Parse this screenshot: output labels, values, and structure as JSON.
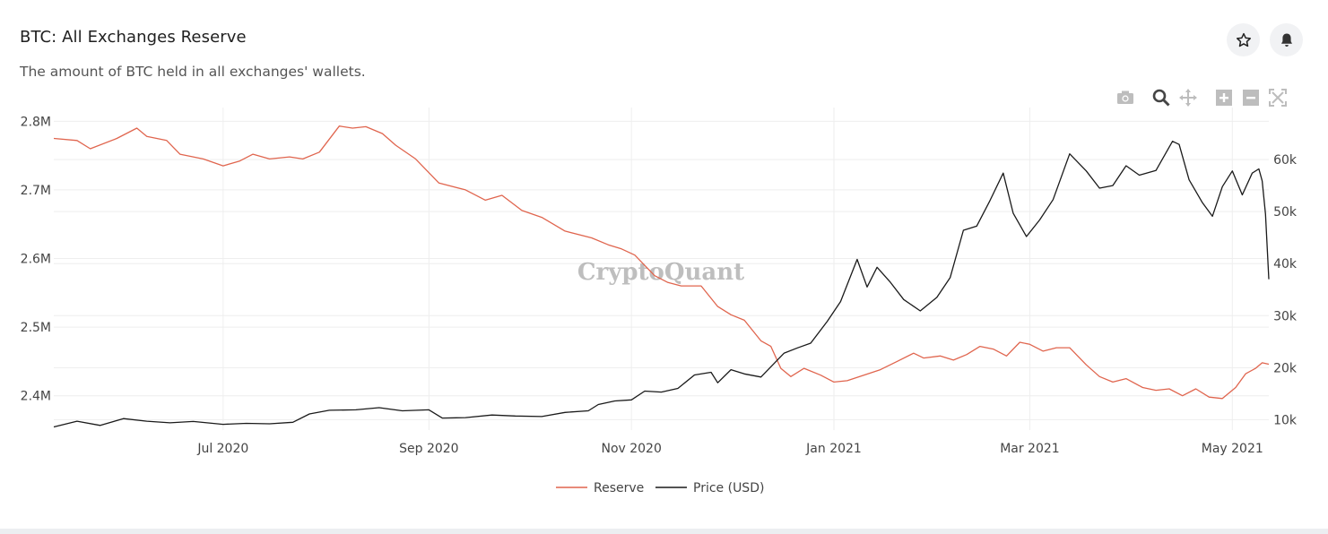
{
  "header": {
    "title": "BTC: All Exchanges Reserve",
    "subtitle": "The amount of BTC held in all exchanges' wallets."
  },
  "actions": {
    "favorite_icon": "star-icon",
    "alert_icon": "bell-icon"
  },
  "modebar": [
    "camera-icon",
    "zoom-icon",
    "pan-icon",
    "zoom-in-icon",
    "zoom-out-icon",
    "autoscale-icon"
  ],
  "watermark": "CryptoQuant",
  "colors": {
    "reserve": "#e0654e",
    "price": "#1a1a1a",
    "grid": "#eeeeee"
  },
  "chart_data": {
    "type": "line",
    "title": "BTC: All Exchanges Reserve",
    "x_range": [
      "2020-05-11",
      "2021-05-12"
    ],
    "x_ticks": [
      {
        "date": "2020-07-01",
        "label": "Jul 2020"
      },
      {
        "date": "2020-09-01",
        "label": "Sep 2020"
      },
      {
        "date": "2020-11-01",
        "label": "Nov 2020"
      },
      {
        "date": "2021-01-01",
        "label": "Jan 2021"
      },
      {
        "date": "2021-03-01",
        "label": "Mar 2021"
      },
      {
        "date": "2021-05-01",
        "label": "May 2021"
      }
    ],
    "y_left": {
      "range": [
        2.35,
        2.82
      ],
      "unit": "M",
      "ticks": [
        {
          "v": 2.4,
          "label": "2.4M"
        },
        {
          "v": 2.5,
          "label": "2.5M"
        },
        {
          "v": 2.6,
          "label": "2.6M"
        },
        {
          "v": 2.7,
          "label": "2.7M"
        },
        {
          "v": 2.8,
          "label": "2.8M"
        }
      ]
    },
    "y_right": {
      "range": [
        8000,
        70000
      ],
      "ticks": [
        {
          "v": 10000,
          "label": "10k"
        },
        {
          "v": 20000,
          "label": "20k"
        },
        {
          "v": 30000,
          "label": "30k"
        },
        {
          "v": 40000,
          "label": "40k"
        },
        {
          "v": 50000,
          "label": "50k"
        },
        {
          "v": 60000,
          "label": "60k"
        }
      ]
    },
    "legend_position": "bottom-center",
    "series": [
      {
        "name": "Reserve",
        "axis": "left",
        "points": [
          [
            "2020-05-11",
            2.775
          ],
          [
            "2020-05-18",
            2.772
          ],
          [
            "2020-05-22",
            2.76
          ],
          [
            "2020-05-30",
            2.775
          ],
          [
            "2020-06-05",
            2.79
          ],
          [
            "2020-06-08",
            2.778
          ],
          [
            "2020-06-14",
            2.772
          ],
          [
            "2020-06-18",
            2.752
          ],
          [
            "2020-06-25",
            2.745
          ],
          [
            "2020-07-01",
            2.735
          ],
          [
            "2020-07-06",
            2.742
          ],
          [
            "2020-07-10",
            2.752
          ],
          [
            "2020-07-15",
            2.745
          ],
          [
            "2020-07-21",
            2.748
          ],
          [
            "2020-07-25",
            2.745
          ],
          [
            "2020-07-30",
            2.755
          ],
          [
            "2020-08-05",
            2.793
          ],
          [
            "2020-08-09",
            2.79
          ],
          [
            "2020-08-13",
            2.792
          ],
          [
            "2020-08-18",
            2.782
          ],
          [
            "2020-08-22",
            2.765
          ],
          [
            "2020-08-28",
            2.745
          ],
          [
            "2020-09-04",
            2.71
          ],
          [
            "2020-09-12",
            2.7
          ],
          [
            "2020-09-18",
            2.685
          ],
          [
            "2020-09-23",
            2.692
          ],
          [
            "2020-09-29",
            2.67
          ],
          [
            "2020-10-05",
            2.66
          ],
          [
            "2020-10-12",
            2.64
          ],
          [
            "2020-10-20",
            2.63
          ],
          [
            "2020-10-25",
            2.62
          ],
          [
            "2020-10-29",
            2.614
          ],
          [
            "2020-11-02",
            2.605
          ],
          [
            "2020-11-08",
            2.575
          ],
          [
            "2020-11-12",
            2.565
          ],
          [
            "2020-11-16",
            2.56
          ],
          [
            "2020-11-22",
            2.56
          ],
          [
            "2020-11-27",
            2.53
          ],
          [
            "2020-12-01",
            2.518
          ],
          [
            "2020-12-05",
            2.51
          ],
          [
            "2020-12-10",
            2.48
          ],
          [
            "2020-12-13",
            2.472
          ],
          [
            "2020-12-16",
            2.44
          ],
          [
            "2020-12-19",
            2.428
          ],
          [
            "2020-12-23",
            2.44
          ],
          [
            "2020-12-28",
            2.43
          ],
          [
            "2021-01-01",
            2.42
          ],
          [
            "2021-01-05",
            2.422
          ],
          [
            "2021-01-10",
            2.43
          ],
          [
            "2021-01-15",
            2.438
          ],
          [
            "2021-01-20",
            2.45
          ],
          [
            "2021-01-25",
            2.462
          ],
          [
            "2021-01-28",
            2.455
          ],
          [
            "2021-02-02",
            2.458
          ],
          [
            "2021-02-06",
            2.452
          ],
          [
            "2021-02-10",
            2.46
          ],
          [
            "2021-02-14",
            2.472
          ],
          [
            "2021-02-18",
            2.468
          ],
          [
            "2021-02-22",
            2.458
          ],
          [
            "2021-02-26",
            2.478
          ],
          [
            "2021-03-01",
            2.475
          ],
          [
            "2021-03-05",
            2.465
          ],
          [
            "2021-03-09",
            2.47
          ],
          [
            "2021-03-13",
            2.47
          ],
          [
            "2021-03-18",
            2.445
          ],
          [
            "2021-03-22",
            2.428
          ],
          [
            "2021-03-26",
            2.42
          ],
          [
            "2021-03-30",
            2.425
          ],
          [
            "2021-04-04",
            2.412
          ],
          [
            "2021-04-08",
            2.408
          ],
          [
            "2021-04-12",
            2.41
          ],
          [
            "2021-04-16",
            2.4
          ],
          [
            "2021-04-20",
            2.41
          ],
          [
            "2021-04-24",
            2.398
          ],
          [
            "2021-04-28",
            2.396
          ],
          [
            "2021-05-02",
            2.412
          ],
          [
            "2021-05-05",
            2.432
          ],
          [
            "2021-05-08",
            2.44
          ],
          [
            "2021-05-10",
            2.448
          ],
          [
            "2021-05-12",
            2.446
          ]
        ]
      },
      {
        "name": "Price (USD)",
        "axis": "right",
        "points": [
          [
            "2020-05-11",
            8600
          ],
          [
            "2020-05-18",
            9700
          ],
          [
            "2020-05-25",
            8900
          ],
          [
            "2020-06-01",
            10200
          ],
          [
            "2020-06-08",
            9700
          ],
          [
            "2020-06-15",
            9400
          ],
          [
            "2020-06-22",
            9650
          ],
          [
            "2020-07-01",
            9100
          ],
          [
            "2020-07-08",
            9300
          ],
          [
            "2020-07-15",
            9200
          ],
          [
            "2020-07-22",
            9500
          ],
          [
            "2020-07-27",
            11100
          ],
          [
            "2020-08-02",
            11800
          ],
          [
            "2020-08-10",
            11900
          ],
          [
            "2020-08-17",
            12300
          ],
          [
            "2020-08-24",
            11700
          ],
          [
            "2020-09-01",
            11900
          ],
          [
            "2020-09-05",
            10300
          ],
          [
            "2020-09-12",
            10400
          ],
          [
            "2020-09-20",
            10900
          ],
          [
            "2020-09-27",
            10700
          ],
          [
            "2020-10-05",
            10600
          ],
          [
            "2020-10-12",
            11400
          ],
          [
            "2020-10-19",
            11700
          ],
          [
            "2020-10-22",
            12900
          ],
          [
            "2020-10-27",
            13600
          ],
          [
            "2020-11-01",
            13800
          ],
          [
            "2020-11-05",
            15500
          ],
          [
            "2020-11-10",
            15300
          ],
          [
            "2020-11-15",
            16000
          ],
          [
            "2020-11-20",
            18600
          ],
          [
            "2020-11-25",
            19100
          ],
          [
            "2020-11-27",
            17100
          ],
          [
            "2020-12-01",
            19600
          ],
          [
            "2020-12-05",
            18800
          ],
          [
            "2020-12-10",
            18200
          ],
          [
            "2020-12-17",
            22800
          ],
          [
            "2020-12-21",
            23800
          ],
          [
            "2020-12-25",
            24700
          ],
          [
            "2020-12-30",
            28900
          ],
          [
            "2021-01-03",
            32700
          ],
          [
            "2021-01-08",
            40800
          ],
          [
            "2021-01-11",
            35500
          ],
          [
            "2021-01-14",
            39300
          ],
          [
            "2021-01-18",
            36400
          ],
          [
            "2021-01-22",
            33100
          ],
          [
            "2021-01-27",
            30900
          ],
          [
            "2021-02-01",
            33500
          ],
          [
            "2021-02-05",
            37300
          ],
          [
            "2021-02-09",
            46400
          ],
          [
            "2021-02-13",
            47200
          ],
          [
            "2021-02-17",
            52100
          ],
          [
            "2021-02-21",
            57400
          ],
          [
            "2021-02-24",
            49700
          ],
          [
            "2021-02-28",
            45200
          ],
          [
            "2021-03-04",
            48400
          ],
          [
            "2021-03-08",
            52300
          ],
          [
            "2021-03-13",
            61100
          ],
          [
            "2021-03-18",
            57800
          ],
          [
            "2021-03-22",
            54500
          ],
          [
            "2021-03-26",
            55000
          ],
          [
            "2021-03-30",
            58800
          ],
          [
            "2021-04-03",
            57000
          ],
          [
            "2021-04-08",
            57900
          ],
          [
            "2021-04-13",
            63500
          ],
          [
            "2021-04-15",
            62900
          ],
          [
            "2021-04-18",
            56100
          ],
          [
            "2021-04-22",
            51700
          ],
          [
            "2021-04-25",
            49100
          ],
          [
            "2021-04-28",
            54800
          ],
          [
            "2021-05-01",
            57800
          ],
          [
            "2021-05-04",
            53200
          ],
          [
            "2021-05-07",
            57400
          ],
          [
            "2021-05-09",
            58200
          ],
          [
            "2021-05-10",
            55900
          ],
          [
            "2021-05-11",
            49500
          ],
          [
            "2021-05-12",
            37000
          ]
        ]
      }
    ]
  }
}
